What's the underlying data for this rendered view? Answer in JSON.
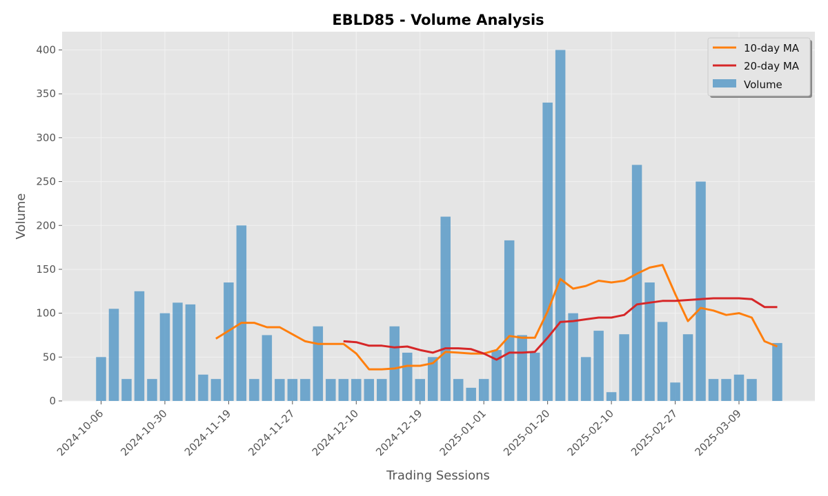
{
  "chart_data": {
    "type": "bar",
    "title": "EBLD85 - Volume Analysis",
    "xlabel": "Trading Sessions",
    "ylabel": "Volume",
    "ylim": [
      0,
      420
    ],
    "yticks": [
      0,
      50,
      100,
      150,
      200,
      250,
      300,
      350,
      400
    ],
    "xtick_labels": [
      {
        "index": 0,
        "label": "2024-10-06"
      },
      {
        "index": 5,
        "label": "2024-10-30"
      },
      {
        "index": 10,
        "label": "2024-11-19"
      },
      {
        "index": 15,
        "label": "2024-11-27"
      },
      {
        "index": 20,
        "label": "2024-12-10"
      },
      {
        "index": 25,
        "label": "2024-12-19"
      },
      {
        "index": 30,
        "label": "2025-01-01"
      },
      {
        "index": 35,
        "label": "2025-01-20"
      },
      {
        "index": 40,
        "label": "2025-02-10"
      },
      {
        "index": 45,
        "label": "2025-02-27"
      },
      {
        "index": 50,
        "label": "2025-03-09"
      }
    ],
    "grid": true,
    "legend_position": "top-right",
    "series": [
      {
        "name": "10-day MA",
        "kind": "line",
        "color": "#ff7f0e",
        "start_index": 9,
        "values": [
          71,
          80,
          89,
          89,
          84,
          84,
          76,
          68,
          65,
          65,
          65,
          54,
          36,
          36,
          37,
          40,
          40,
          43,
          56,
          55,
          54,
          54,
          58,
          74,
          72,
          72,
          102,
          139,
          128,
          131,
          137,
          135,
          137,
          145,
          152,
          155,
          122,
          91,
          106,
          103,
          98,
          100,
          95,
          68,
          62
        ]
      },
      {
        "name": "20-day MA",
        "kind": "line",
        "color": "#d62728",
        "start_index": 19,
        "values": [
          68,
          67,
          63,
          63,
          61,
          62,
          58,
          55,
          60,
          60,
          59,
          54,
          47,
          55,
          55,
          56,
          72,
          90,
          91,
          93,
          95,
          95,
          98,
          110,
          112,
          114,
          114,
          115,
          116,
          117,
          117,
          117,
          116,
          107,
          107
        ]
      },
      {
        "name": "Volume",
        "kind": "bar",
        "color": "#5b9bc8",
        "start_index": 0,
        "values": [
          50,
          105,
          25,
          125,
          25,
          100,
          112,
          110,
          30,
          25,
          135,
          200,
          25,
          75,
          25,
          25,
          25,
          85,
          25,
          25,
          25,
          25,
          25,
          85,
          55,
          25,
          50,
          210,
          25,
          15,
          25,
          58,
          183,
          75,
          55,
          340,
          400,
          100,
          50,
          80,
          10,
          76,
          269,
          135,
          90,
          21,
          76,
          250,
          25,
          25,
          30,
          25,
          0,
          66
        ]
      }
    ]
  }
}
